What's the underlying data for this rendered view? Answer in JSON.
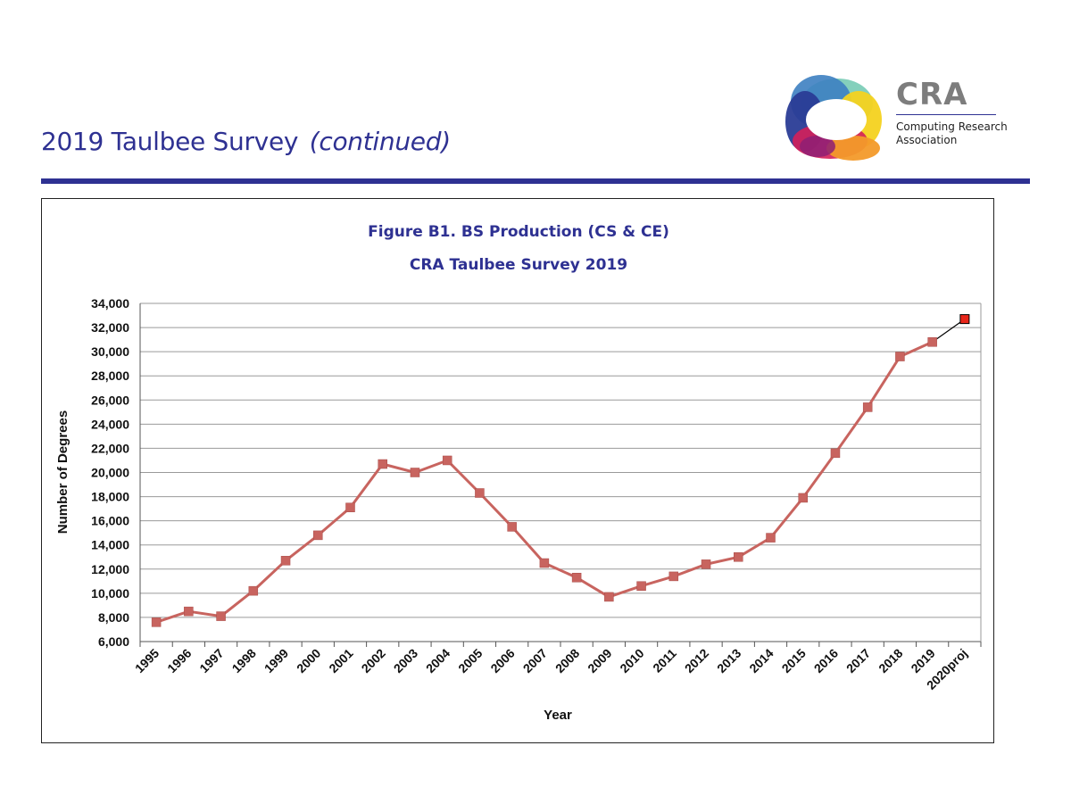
{
  "header": {
    "title": "2019 Taulbee Survey",
    "title_suffix": "(continued)"
  },
  "logo": {
    "name": "CRA",
    "subtitle": "Computing Research Association"
  },
  "colors": {
    "brand": "#2e3192",
    "series_line": "#c8645f",
    "marker": "#c8645f",
    "projection_marker": "#e8261a",
    "grid": "#9a9a9a"
  },
  "chart_data": {
    "type": "line",
    "title": "Figure B1. BS Production (CS & CE)",
    "subtitle": "CRA Taulbee Survey 2019",
    "xlabel": "Year",
    "ylabel": "Number of Degrees",
    "ylim": [
      6000,
      34000
    ],
    "yticks": [
      6000,
      8000,
      10000,
      12000,
      14000,
      16000,
      18000,
      20000,
      22000,
      24000,
      26000,
      28000,
      30000,
      32000,
      34000
    ],
    "grid": true,
    "categories": [
      "1995",
      "1996",
      "1997",
      "1998",
      "1999",
      "2000",
      "2001",
      "2002",
      "2003",
      "2004",
      "2005",
      "2006",
      "2007",
      "2008",
      "2009",
      "2010",
      "2011",
      "2012",
      "2013",
      "2014",
      "2015",
      "2016",
      "2017",
      "2018",
      "2019",
      "2020proj"
    ],
    "series": [
      {
        "name": "BS Production (CS & CE)",
        "values": [
          7600,
          8500,
          8100,
          10200,
          12700,
          14800,
          17100,
          20700,
          20000,
          21000,
          18300,
          15500,
          12500,
          11300,
          9700,
          10600,
          11400,
          12400,
          13000,
          14600,
          17900,
          21600,
          25400,
          29600,
          30800,
          null
        ]
      },
      {
        "name": "Projection",
        "values": [
          null,
          null,
          null,
          null,
          null,
          null,
          null,
          null,
          null,
          null,
          null,
          null,
          null,
          null,
          null,
          null,
          null,
          null,
          null,
          null,
          null,
          null,
          null,
          null,
          30800,
          32700
        ]
      }
    ]
  }
}
